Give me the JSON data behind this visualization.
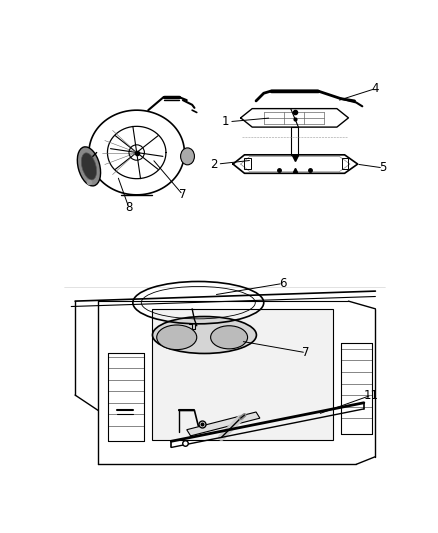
{
  "background_color": "#ffffff",
  "line_color": "#000000",
  "fig_width": 4.38,
  "fig_height": 5.33,
  "dpi": 100,
  "label_fontsize": 8.5
}
